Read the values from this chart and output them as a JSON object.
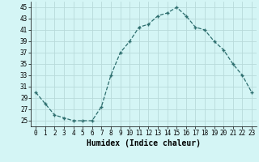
{
  "x": [
    0,
    1,
    2,
    3,
    4,
    5,
    6,
    7,
    8,
    9,
    10,
    11,
    12,
    13,
    14,
    15,
    16,
    17,
    18,
    19,
    20,
    21,
    22,
    23
  ],
  "y": [
    30,
    28,
    26,
    25.5,
    25,
    25,
    25,
    27.5,
    33,
    37,
    39,
    41.5,
    42,
    43.5,
    44,
    45,
    43.5,
    41.5,
    41,
    39,
    37.5,
    35,
    33,
    30
  ],
  "xlabel": "Humidex (Indice chaleur)",
  "xlim": [
    -0.5,
    23.5
  ],
  "ylim": [
    24,
    46
  ],
  "yticks": [
    25,
    27,
    29,
    31,
    33,
    35,
    37,
    39,
    41,
    43,
    45
  ],
  "xticks": [
    0,
    1,
    2,
    3,
    4,
    5,
    6,
    7,
    8,
    9,
    10,
    11,
    12,
    13,
    14,
    15,
    16,
    17,
    18,
    19,
    20,
    21,
    22,
    23
  ],
  "line_color": "#2d6e6e",
  "marker": "+",
  "bg_color": "#d4f5f5",
  "grid_color": "#b8dada",
  "label_fontsize": 7,
  "tick_fontsize": 5.5
}
